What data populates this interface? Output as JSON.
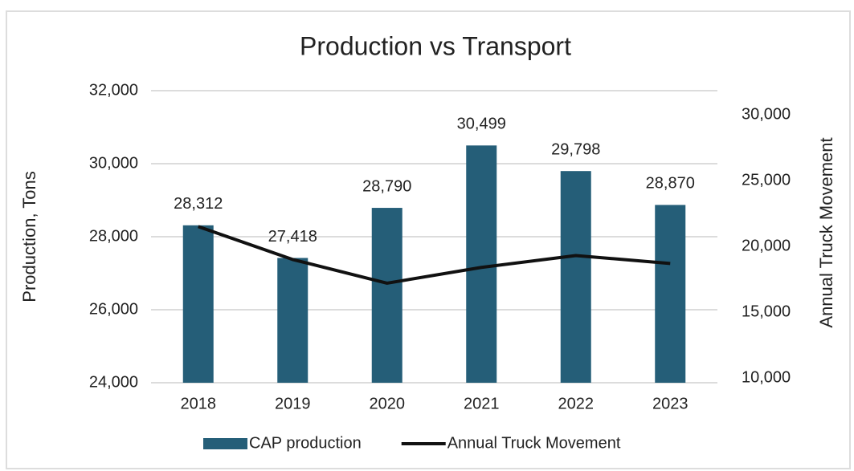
{
  "chart_data": {
    "type": "bar",
    "title": "Production vs Transport",
    "ylabel": "Production, Tons",
    "y2label": "Annual Truck Movement",
    "categories": [
      "2018",
      "2019",
      "2020",
      "2021",
      "2022",
      "2023"
    ],
    "ylim": [
      24000,
      32000
    ],
    "yticks": [
      {
        "value": 24000,
        "label": "24,000"
      },
      {
        "value": 26000,
        "label": "26,000"
      },
      {
        "value": 28000,
        "label": "28,000"
      },
      {
        "value": 30000,
        "label": "30,000"
      },
      {
        "value": 32000,
        "label": "32,000"
      }
    ],
    "y2lim": [
      10000,
      30000
    ],
    "y2ticks": [
      {
        "value": 10000,
        "label": "10,000"
      },
      {
        "value": 15000,
        "label": "15,000"
      },
      {
        "value": 20000,
        "label": "20,000"
      },
      {
        "value": 25000,
        "label": "25,000"
      },
      {
        "value": 30000,
        "label": "30,000"
      }
    ],
    "grid": true,
    "legend": "bottom",
    "series": [
      {
        "name": "CAP production",
        "type": "bar",
        "color": "#255e78",
        "values": [
          28312,
          27418,
          28790,
          30499,
          29798,
          28870
        ],
        "value_labels": [
          "28,312",
          "27,418",
          "28,790",
          "30,499",
          "29,798",
          "28,870"
        ]
      },
      {
        "name": "Annual Truck Movement",
        "type": "line",
        "axis": "y2",
        "color": "#111111",
        "values": [
          21500,
          19000,
          17200,
          18400,
          19300,
          18700
        ]
      }
    ]
  }
}
